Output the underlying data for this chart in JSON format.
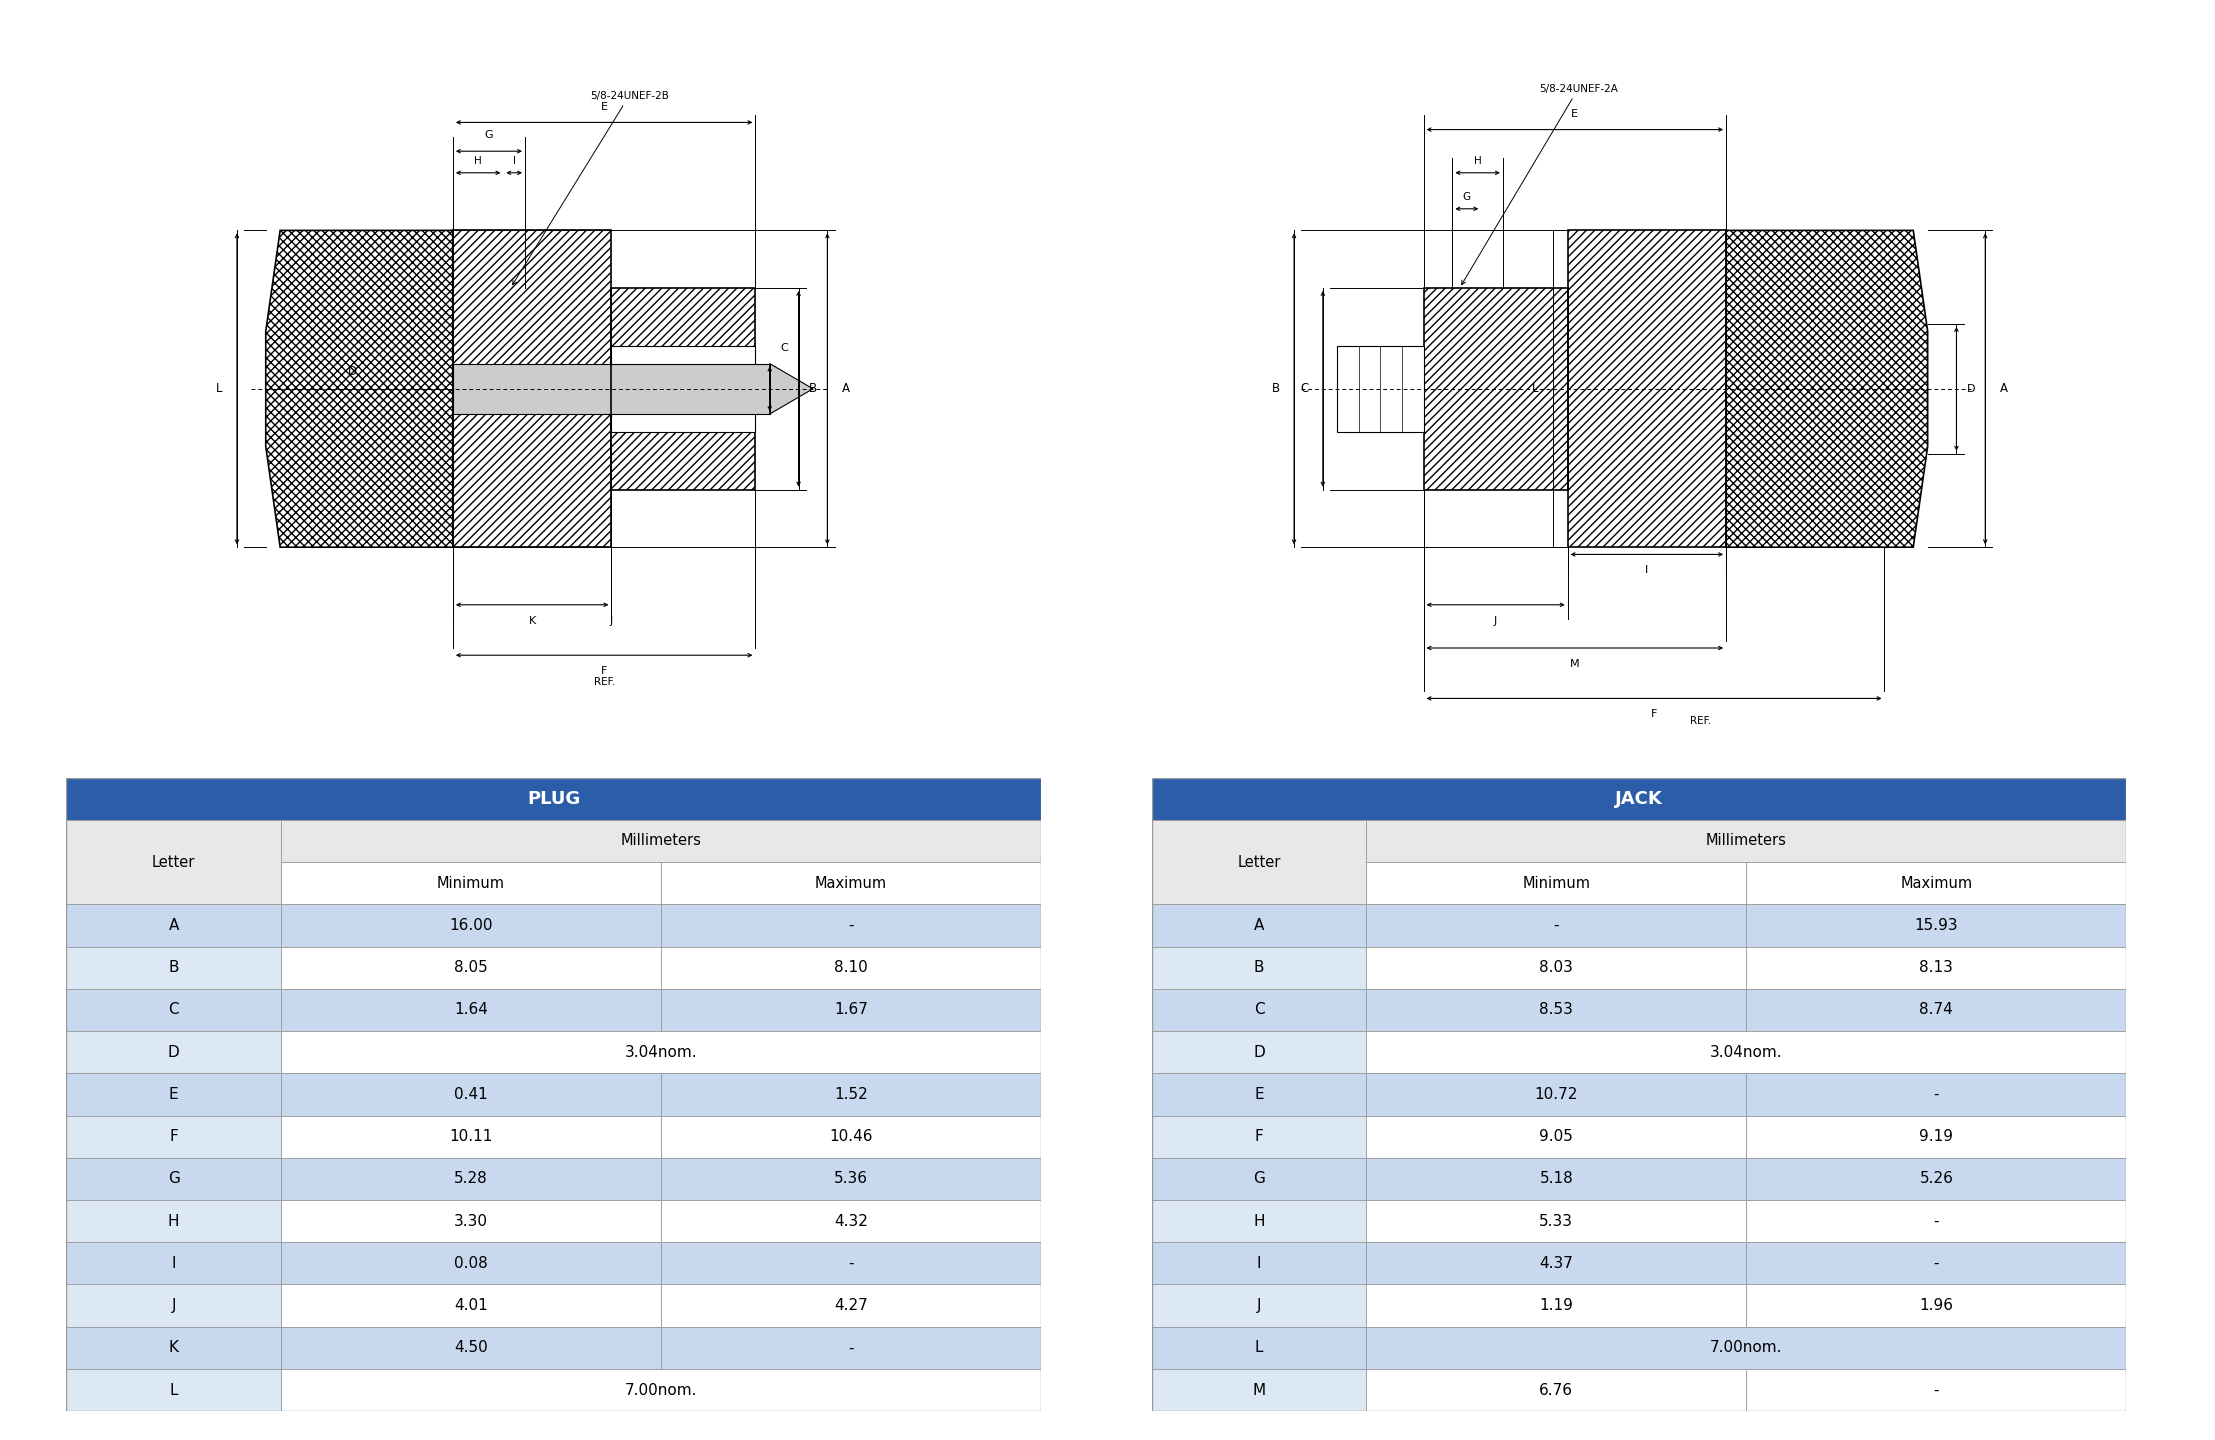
{
  "plug_title": "PLUG",
  "jack_title": "JACK",
  "millimeters_label": "Millimeters",
  "letter_label": "Letter",
  "min_label": "Minimum",
  "max_label": "Maximum",
  "plug_rows": [
    [
      "A",
      "16.00",
      "-"
    ],
    [
      "B",
      "8.05",
      "8.10"
    ],
    [
      "C",
      "1.64",
      "1.67"
    ],
    [
      "D",
      "3.04nom.",
      ""
    ],
    [
      "E",
      "0.41",
      "1.52"
    ],
    [
      "F",
      "10.11",
      "10.46"
    ],
    [
      "G",
      "5.28",
      "5.36"
    ],
    [
      "H",
      "3.30",
      "4.32"
    ],
    [
      "I",
      "0.08",
      "-"
    ],
    [
      "J",
      "4.01",
      "4.27"
    ],
    [
      "K",
      "4.50",
      "-"
    ],
    [
      "L",
      "7.00nom.",
      ""
    ]
  ],
  "jack_rows": [
    [
      "A",
      "-",
      "15.93"
    ],
    [
      "B",
      "8.03",
      "8.13"
    ],
    [
      "C",
      "8.53",
      "8.74"
    ],
    [
      "D",
      "3.04nom.",
      ""
    ],
    [
      "E",
      "10.72",
      "-"
    ],
    [
      "F",
      "9.05",
      "9.19"
    ],
    [
      "G",
      "5.18",
      "5.26"
    ],
    [
      "H",
      "5.33",
      "-"
    ],
    [
      "I",
      "4.37",
      "-"
    ],
    [
      "J",
      "1.19",
      "1.96"
    ],
    [
      "L",
      "7.00nom.",
      ""
    ],
    [
      "M",
      "6.76",
      "-"
    ]
  ],
  "header_color": "#2B5DA8",
  "header_text_color": "#FFFFFF",
  "subheader_bg": "#E8E8E8",
  "odd_row_color": "#C8D8EE",
  "even_row_color": "#FFFFFF",
  "border_color": "#999999",
  "text_color": "#000000",
  "plug_label_5824": "5/8-24UNEF-2B",
  "jack_label_5824": "5/8-24UNEF-2A"
}
